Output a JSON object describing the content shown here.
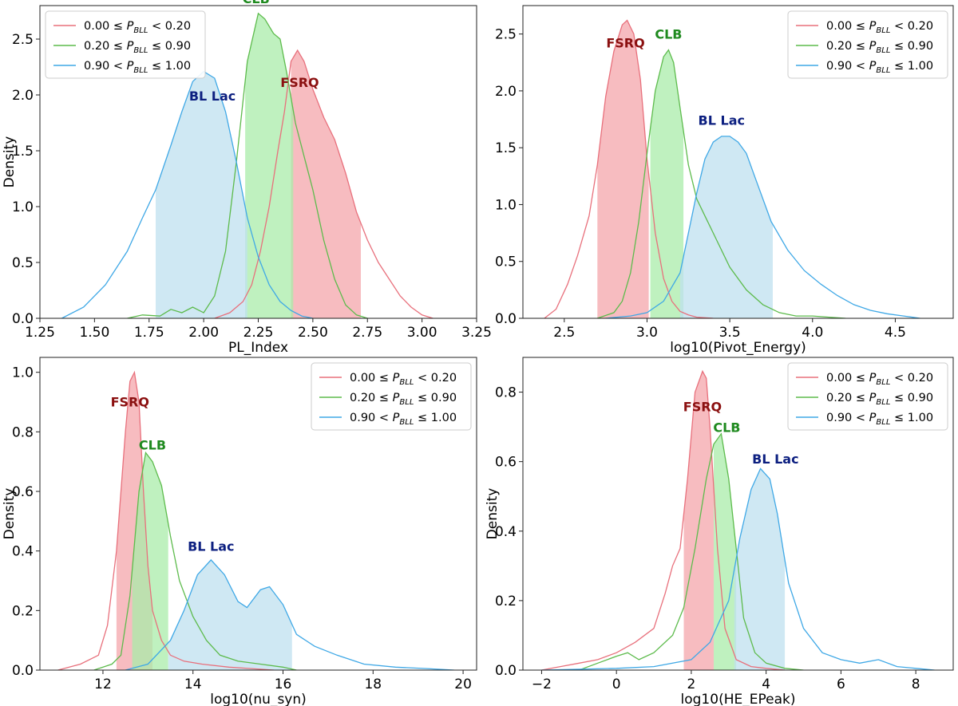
{
  "figure": {
    "legend_entries": [
      {
        "prefix": "0.00 ≤ ",
        "subscript": "BLL",
        "suffix": " < 0.20",
        "color": "#e8707c"
      },
      {
        "prefix": "0.20 ≤ ",
        "subscript": "BLL",
        "suffix": " ≤ 0.90",
        "color": "#5dbb4c"
      },
      {
        "prefix": "0.90 < ",
        "subscript": "BLL",
        "suffix": " ≤ 1.00",
        "color": "#3fa8e6"
      }
    ],
    "class_colors": {
      "FSRQ": {
        "line": "#e8707c",
        "fill": "#f4a6ab",
        "label": "#8b1010"
      },
      "CLB": {
        "line": "#5dbb4c",
        "fill": "#a9ecaa",
        "label": "#1f8a1f"
      },
      "BL Lac": {
        "line": "#3fa8e6",
        "fill": "#bfe0ef",
        "label": "#0c1f80"
      }
    }
  },
  "chart_data": [
    {
      "type": "area",
      "xlabel": "PL_Index",
      "ylabel": "Density",
      "xlim": [
        1.25,
        3.25
      ],
      "ylim": [
        0,
        2.8
      ],
      "xticks": [
        1.25,
        1.5,
        1.75,
        2.0,
        2.25,
        2.5,
        2.75,
        3.0,
        3.25
      ],
      "xtick_labels": [
        "1.25",
        "1.50",
        "1.75",
        "2.00",
        "2.25",
        "2.50",
        "2.75",
        "3.00",
        "3.25"
      ],
      "yticks": [
        0,
        0.5,
        1.0,
        1.5,
        2.0,
        2.5
      ],
      "ytick_labels": [
        "0.0",
        "0.5",
        "1.0",
        "1.5",
        "2.0",
        "2.5"
      ],
      "legend_position": "upper-left",
      "series": [
        {
          "name": "FSRQ",
          "shade": [
            2.4,
            2.72
          ],
          "x": [
            2.05,
            2.12,
            2.18,
            2.22,
            2.26,
            2.3,
            2.34,
            2.37,
            2.4,
            2.43,
            2.46,
            2.5,
            2.55,
            2.6,
            2.65,
            2.7,
            2.75,
            2.8,
            2.85,
            2.9,
            2.95,
            3.0,
            3.05
          ],
          "y": [
            0.0,
            0.05,
            0.15,
            0.3,
            0.6,
            1.0,
            1.5,
            1.85,
            2.3,
            2.4,
            2.3,
            2.05,
            1.8,
            1.6,
            1.3,
            0.95,
            0.7,
            0.5,
            0.35,
            0.2,
            0.1,
            0.03,
            0.0
          ]
        },
        {
          "name": "CLB",
          "shade": [
            2.19,
            2.41
          ],
          "x": [
            1.65,
            1.72,
            1.8,
            1.85,
            1.9,
            1.95,
            2.0,
            2.05,
            2.1,
            2.15,
            2.2,
            2.25,
            2.28,
            2.32,
            2.35,
            2.38,
            2.42,
            2.46,
            2.5,
            2.55,
            2.6,
            2.65,
            2.7,
            2.75
          ],
          "y": [
            0.0,
            0.03,
            0.02,
            0.08,
            0.05,
            0.1,
            0.05,
            0.2,
            0.6,
            1.4,
            2.3,
            2.73,
            2.68,
            2.55,
            2.5,
            2.2,
            1.75,
            1.45,
            1.15,
            0.7,
            0.35,
            0.12,
            0.03,
            0.0
          ]
        },
        {
          "name": "BL Lac",
          "shade": [
            1.78,
            2.2
          ],
          "x": [
            1.35,
            1.45,
            1.55,
            1.65,
            1.72,
            1.78,
            1.85,
            1.9,
            1.95,
            2.0,
            2.05,
            2.1,
            2.15,
            2.2,
            2.25,
            2.3,
            2.35,
            2.4,
            2.45,
            2.5
          ],
          "y": [
            0.0,
            0.1,
            0.3,
            0.6,
            0.9,
            1.15,
            1.55,
            1.85,
            2.12,
            2.21,
            2.15,
            1.85,
            1.4,
            0.9,
            0.55,
            0.3,
            0.15,
            0.07,
            0.02,
            0.0
          ]
        }
      ],
      "annotations": [
        {
          "text": "CLB",
          "class": "CLB",
          "x": 2.24,
          "y": 2.82
        },
        {
          "text": "FSRQ",
          "class": "FSRQ",
          "x": 2.44,
          "y": 2.07
        },
        {
          "text": "BL Lac",
          "class": "BL Lac",
          "x": 2.04,
          "y": 1.95
        }
      ]
    },
    {
      "type": "area",
      "xlabel": "log10(Pivot_Energy)",
      "ylabel": "",
      "xlim": [
        2.25,
        4.85
      ],
      "ylim": [
        0,
        2.75
      ],
      "xticks": [
        2.5,
        3.0,
        3.5,
        4.0,
        4.5
      ],
      "xtick_labels": [
        "2.5",
        "3.0",
        "3.5",
        "4.0",
        "4.5"
      ],
      "yticks": [
        0,
        0.5,
        1.0,
        1.5,
        2.0,
        2.5
      ],
      "ytick_labels": [
        "0.0",
        "0.5",
        "1.0",
        "1.5",
        "2.0",
        "2.5"
      ],
      "legend_position": "upper-right",
      "series": [
        {
          "name": "FSRQ",
          "shade": [
            2.7,
            3.01
          ],
          "x": [
            2.38,
            2.45,
            2.52,
            2.58,
            2.65,
            2.7,
            2.75,
            2.8,
            2.85,
            2.88,
            2.92,
            2.96,
            3.0,
            3.05,
            3.1,
            3.15,
            3.2,
            3.25,
            3.3,
            3.4
          ],
          "y": [
            0.0,
            0.08,
            0.3,
            0.55,
            0.9,
            1.35,
            1.95,
            2.35,
            2.58,
            2.62,
            2.5,
            2.1,
            1.4,
            0.75,
            0.35,
            0.15,
            0.06,
            0.03,
            0.01,
            0.0
          ]
        },
        {
          "name": "CLB",
          "shade": [
            3.02,
            3.22
          ],
          "x": [
            2.7,
            2.8,
            2.85,
            2.9,
            2.95,
            3.0,
            3.05,
            3.1,
            3.13,
            3.16,
            3.2,
            3.25,
            3.3,
            3.35,
            3.4,
            3.5,
            3.6,
            3.7,
            3.8,
            3.9,
            4.0,
            4.1,
            4.2
          ],
          "y": [
            0.0,
            0.05,
            0.15,
            0.4,
            0.85,
            1.45,
            2.0,
            2.3,
            2.36,
            2.25,
            1.85,
            1.35,
            1.05,
            0.9,
            0.75,
            0.45,
            0.25,
            0.12,
            0.05,
            0.02,
            0.02,
            0.01,
            0.0
          ]
        },
        {
          "name": "BL Lac",
          "shade": [
            3.2,
            3.76
          ],
          "x": [
            2.75,
            2.9,
            3.0,
            3.1,
            3.2,
            3.25,
            3.3,
            3.35,
            3.4,
            3.45,
            3.5,
            3.55,
            3.6,
            3.65,
            3.7,
            3.75,
            3.85,
            3.95,
            4.05,
            4.15,
            4.25,
            4.35,
            4.45,
            4.55,
            4.65
          ],
          "y": [
            0.0,
            0.02,
            0.05,
            0.15,
            0.4,
            0.75,
            1.1,
            1.4,
            1.55,
            1.6,
            1.6,
            1.55,
            1.45,
            1.25,
            1.05,
            0.85,
            0.6,
            0.42,
            0.3,
            0.2,
            0.12,
            0.07,
            0.04,
            0.02,
            0.0
          ]
        }
      ],
      "annotations": [
        {
          "text": "FSRQ",
          "class": "FSRQ",
          "x": 2.87,
          "y": 2.38
        },
        {
          "text": "CLB",
          "class": "CLB",
          "x": 3.13,
          "y": 2.46
        },
        {
          "text": "BL Lac",
          "class": "BL Lac",
          "x": 3.45,
          "y": 1.7
        }
      ]
    },
    {
      "type": "area",
      "xlabel": "log10(nu_syn)",
      "ylabel": "Density",
      "xlim": [
        10.6,
        20.3
      ],
      "ylim": [
        0,
        1.05
      ],
      "xticks": [
        12,
        14,
        16,
        18,
        20
      ],
      "xtick_labels": [
        "12",
        "14",
        "16",
        "18",
        "20"
      ],
      "yticks": [
        0,
        0.2,
        0.4,
        0.6,
        0.8,
        1.0
      ],
      "ytick_labels": [
        "0.0",
        "0.2",
        "0.4",
        "0.6",
        "0.8",
        "1.0"
      ],
      "legend_position": "upper-right",
      "series": [
        {
          "name": "FSRQ",
          "shade": [
            12.3,
            13.1
          ],
          "x": [
            11.0,
            11.5,
            11.9,
            12.1,
            12.3,
            12.5,
            12.6,
            12.7,
            12.8,
            12.9,
            13.0,
            13.1,
            13.3,
            13.5,
            13.8,
            14.2,
            14.8,
            15.3,
            15.8
          ],
          "y": [
            0.0,
            0.02,
            0.05,
            0.15,
            0.4,
            0.8,
            0.97,
            1.0,
            0.9,
            0.6,
            0.35,
            0.2,
            0.1,
            0.05,
            0.03,
            0.02,
            0.01,
            0.005,
            0.0
          ]
        },
        {
          "name": "CLB",
          "shade": [
            12.65,
            13.45
          ],
          "x": [
            11.8,
            12.2,
            12.4,
            12.6,
            12.8,
            12.95,
            13.1,
            13.3,
            13.5,
            13.7,
            14.0,
            14.3,
            14.6,
            15.0,
            15.5,
            16.0,
            16.3
          ],
          "y": [
            0.0,
            0.02,
            0.05,
            0.25,
            0.6,
            0.73,
            0.7,
            0.62,
            0.45,
            0.3,
            0.18,
            0.1,
            0.05,
            0.03,
            0.02,
            0.01,
            0.0
          ]
        },
        {
          "name": "BL Lac",
          "shade": [
            13.45,
            16.2
          ],
          "x": [
            12.5,
            13.0,
            13.5,
            13.8,
            14.1,
            14.4,
            14.7,
            15.0,
            15.2,
            15.5,
            15.7,
            16.0,
            16.3,
            16.7,
            17.2,
            17.8,
            18.5,
            19.2,
            19.8
          ],
          "y": [
            0.0,
            0.02,
            0.1,
            0.2,
            0.32,
            0.37,
            0.32,
            0.23,
            0.21,
            0.27,
            0.28,
            0.22,
            0.12,
            0.08,
            0.05,
            0.02,
            0.01,
            0.005,
            0.0
          ]
        }
      ],
      "annotations": [
        {
          "text": "FSRQ",
          "class": "FSRQ",
          "x": 12.6,
          "y": 0.885
        },
        {
          "text": "CLB",
          "class": "CLB",
          "x": 13.1,
          "y": 0.74
        },
        {
          "text": "BL Lac",
          "class": "BL Lac",
          "x": 14.4,
          "y": 0.4
        }
      ]
    },
    {
      "type": "area",
      "xlabel": "log10(HE_EPeak)",
      "ylabel": "Density",
      "xlim": [
        -2.5,
        9.0
      ],
      "ylim": [
        0,
        0.9
      ],
      "xticks": [
        -2,
        0,
        2,
        4,
        6,
        8
      ],
      "xtick_labels": [
        "−2",
        "0",
        "2",
        "4",
        "6",
        "8"
      ],
      "yticks": [
        0,
        0.2,
        0.4,
        0.6,
        0.8
      ],
      "ytick_labels": [
        "0.0",
        "0.2",
        "0.4",
        "0.6",
        "0.8"
      ],
      "legend_position": "upper-right",
      "series": [
        {
          "name": "FSRQ",
          "shade": [
            1.8,
            2.6
          ],
          "x": [
            -2.0,
            -1.5,
            -1.0,
            -0.5,
            0.0,
            0.5,
            1.0,
            1.3,
            1.5,
            1.7,
            1.9,
            2.1,
            2.3,
            2.4,
            2.5,
            2.7,
            2.9,
            3.2,
            3.6,
            4.0,
            4.5
          ],
          "y": [
            0.0,
            0.01,
            0.02,
            0.03,
            0.05,
            0.08,
            0.12,
            0.22,
            0.3,
            0.35,
            0.55,
            0.8,
            0.86,
            0.84,
            0.7,
            0.35,
            0.12,
            0.03,
            0.01,
            0.005,
            0.0
          ]
        },
        {
          "name": "CLB",
          "shade": [
            2.6,
            3.2
          ],
          "x": [
            -1.0,
            -0.5,
            0.0,
            0.3,
            0.6,
            1.0,
            1.5,
            1.8,
            2.1,
            2.4,
            2.6,
            2.8,
            3.0,
            3.2,
            3.4,
            3.7,
            4.0,
            4.5,
            5.0
          ],
          "y": [
            0.0,
            0.02,
            0.04,
            0.05,
            0.03,
            0.05,
            0.1,
            0.18,
            0.35,
            0.55,
            0.65,
            0.68,
            0.55,
            0.35,
            0.15,
            0.05,
            0.02,
            0.005,
            0.0
          ]
        },
        {
          "name": "BL Lac",
          "shade": [
            3.15,
            4.5
          ],
          "x": [
            -2.0,
            0.0,
            1.0,
            2.0,
            2.5,
            3.0,
            3.3,
            3.6,
            3.85,
            4.1,
            4.3,
            4.6,
            5.0,
            5.5,
            6.0,
            6.5,
            7.0,
            7.5,
            8.0,
            8.5
          ],
          "y": [
            0.0,
            0.005,
            0.01,
            0.03,
            0.08,
            0.2,
            0.38,
            0.52,
            0.58,
            0.55,
            0.45,
            0.25,
            0.12,
            0.05,
            0.03,
            0.02,
            0.03,
            0.01,
            0.005,
            0.0
          ]
        }
      ],
      "annotations": [
        {
          "text": "FSRQ",
          "class": "FSRQ",
          "x": 2.3,
          "y": 0.745
        },
        {
          "text": "CLB",
          "class": "CLB",
          "x": 2.95,
          "y": 0.685
        },
        {
          "text": "BL Lac",
          "class": "BL Lac",
          "x": 4.25,
          "y": 0.595
        }
      ]
    }
  ]
}
